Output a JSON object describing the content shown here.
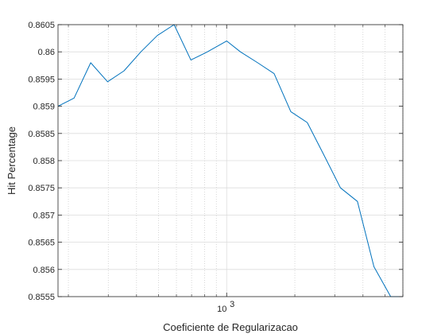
{
  "chart_data": {
    "type": "line",
    "title": "",
    "xlabel": "Coeficiente de Regularizacao",
    "ylabel": "Hit Percentage",
    "xscale": "log",
    "xlim": [
      180,
      6000
    ],
    "ylim": [
      0.8555,
      0.8605
    ],
    "grid": "on",
    "x_tick_labels": [
      {
        "value": 1000,
        "base": "10",
        "exponent": "3"
      }
    ],
    "y_tick_labels": [
      "0.8555",
      "0.856",
      "0.8565",
      "0.857",
      "0.8575",
      "0.858",
      "0.8585",
      "0.859",
      "0.8595",
      "0.86",
      "0.8605"
    ],
    "y_ticks": [
      0.8555,
      0.856,
      0.8565,
      0.857,
      0.8575,
      0.858,
      0.8585,
      0.859,
      0.8595,
      0.86,
      0.8605
    ],
    "line_color": "#0072BD",
    "series": [
      {
        "x": [
          180,
          212,
          251,
          298,
          352,
          418,
          494,
          586,
          695,
          822,
          1000,
          1150,
          1370,
          1620,
          1920,
          2270,
          2690,
          3180,
          3780,
          4470,
          5300,
          6000
        ],
        "values": [
          0.859,
          0.85915,
          0.8598,
          0.85945,
          0.85965,
          0.86,
          0.8603,
          0.8605,
          0.85985,
          0.86,
          0.8602,
          0.86,
          0.8598,
          0.8596,
          0.8589,
          0.8587,
          0.8581,
          0.8575,
          0.85725,
          0.85605,
          0.8555,
          0.8555
        ]
      }
    ]
  }
}
